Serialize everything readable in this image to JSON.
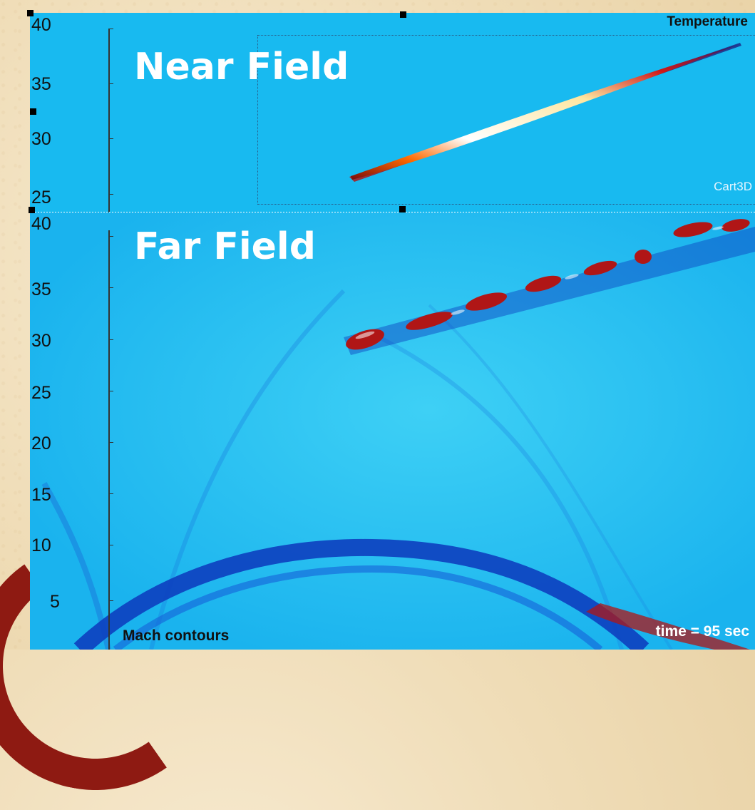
{
  "near_field": {
    "title": "Near Field",
    "variable_label": "Temperature",
    "source_label": "Cart3D",
    "y_ticks": [
      "40",
      "35",
      "30",
      "25"
    ]
  },
  "far_field": {
    "title": "Far Field",
    "variable_label": "Mach contours",
    "time_label": "time = 95 sec",
    "y_ticks": [
      "40",
      "35",
      "30",
      "25",
      "20",
      "15",
      "10",
      "5"
    ]
  },
  "colors": {
    "field_background": "#1fbaf0",
    "shock_dark_blue": "#0d3fbf",
    "hot_red": "#b01616",
    "hot_white": "#ffffff",
    "slide_background": "#efdcb6",
    "decor_red": "#8e1a12"
  }
}
